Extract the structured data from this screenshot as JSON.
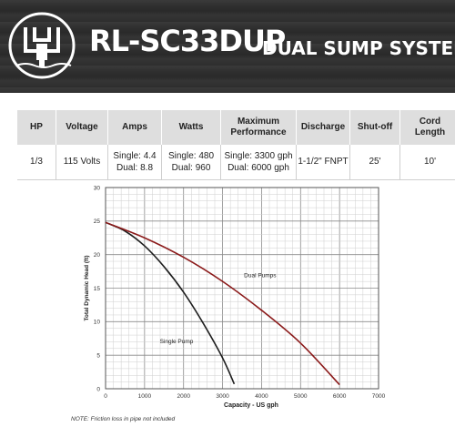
{
  "header": {
    "model": "RL-SC33DUP",
    "subtitle": "DUAL SUMP SYSTEM"
  },
  "colors": {
    "single": "#1e1e1e",
    "dual": "#8b1a1a",
    "grid": "#9a9a9a",
    "header_bg": "#333333"
  },
  "spec_table": {
    "columns": [
      {
        "lines": [
          "HP"
        ],
        "value": [
          "1/3"
        ]
      },
      {
        "lines": [
          "Voltage"
        ],
        "value": [
          "115 Volts"
        ]
      },
      {
        "lines": [
          "Amps"
        ],
        "value": [
          "Single: 4.4",
          "Dual: 8.8"
        ]
      },
      {
        "lines": [
          "Watts"
        ],
        "value": [
          "Single: 480",
          "Dual: 960"
        ]
      },
      {
        "lines": [
          "Maximum",
          "Performance"
        ],
        "value": [
          "Single: 3300 gph",
          "Dual: 6000 gph"
        ]
      },
      {
        "lines": [
          "Discharge"
        ],
        "value": [
          "1-1/2\" FNPT"
        ]
      },
      {
        "lines": [
          "Shut-off"
        ],
        "value": [
          "25'"
        ]
      },
      {
        "lines": [
          "Cord",
          "Length"
        ],
        "value": [
          "10'"
        ]
      }
    ]
  },
  "chart_data": {
    "type": "line",
    "xlabel": "Capacity - US gph",
    "ylabel": "Total Dynamic Head (ft)",
    "xlim": [
      0,
      7000
    ],
    "ylim": [
      0,
      30
    ],
    "xticks": [
      0,
      1000,
      2000,
      3000,
      4000,
      5000,
      6000,
      7000
    ],
    "yticks": [
      0,
      5,
      10,
      15,
      20,
      25,
      30
    ],
    "grid": true,
    "series": [
      {
        "name": "Single Pump",
        "x": [
          0,
          500,
          1000,
          1500,
          2000,
          2500,
          3000,
          3300
        ],
        "y": [
          24.8,
          23.5,
          21.3,
          18.2,
          14.4,
          9.8,
          4.6,
          0.7
        ]
      },
      {
        "name": "Dual Pumps",
        "x": [
          0,
          1000,
          2000,
          3000,
          4000,
          5000,
          6000
        ],
        "y": [
          24.8,
          22.5,
          19.6,
          16.0,
          11.7,
          6.8,
          0.6
        ]
      }
    ],
    "annotations": [
      {
        "text": "Dual Pumps",
        "x": 3550,
        "y": 16.6
      },
      {
        "text": "Single Pump",
        "x": 1390,
        "y": 6.8
      }
    ]
  },
  "note": "NOTE: Friction loss in pipe not included"
}
